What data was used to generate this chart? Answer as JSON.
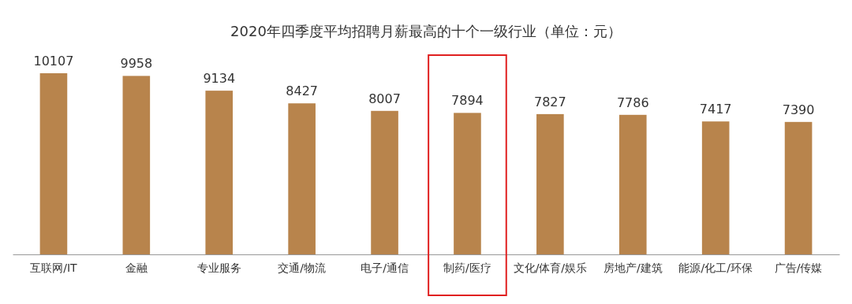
{
  "chart_data": {
    "type": "bar",
    "title": "2020年四季度平均招聘月薪最高的十个一级行业（单位：元）",
    "categories": [
      "互联网/IT",
      "金融",
      "专业服务",
      "交通/物流",
      "电子/通信",
      "制药/医疗",
      "文化/体育/娱乐",
      "房地产/建筑",
      "能源/化工/环保",
      "广告/传媒"
    ],
    "values": [
      10107,
      9958,
      9134,
      8427,
      8007,
      7894,
      7827,
      7786,
      7417,
      7390
    ],
    "color": "#b8844c",
    "data_labels": true
  }
}
